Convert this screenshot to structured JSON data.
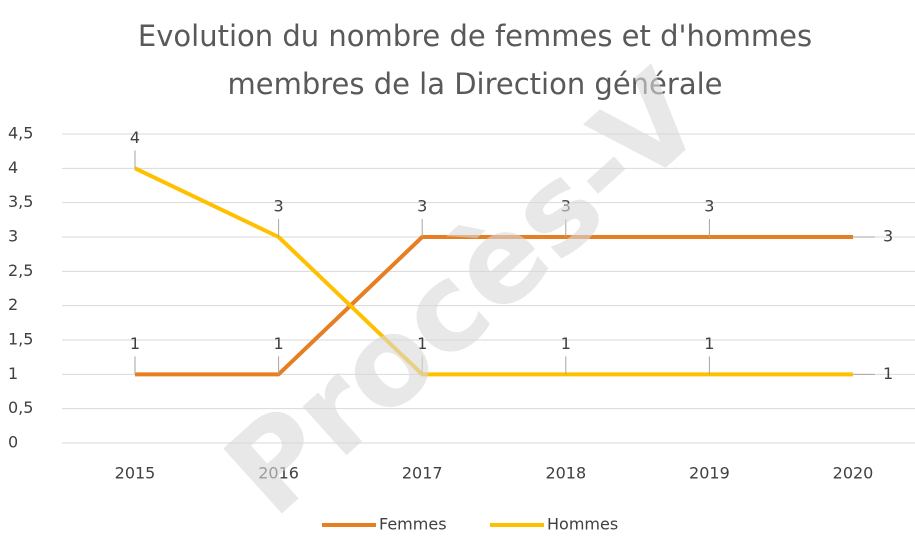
{
  "chart_data": {
    "type": "line",
    "title": [
      "Evolution du nombre de femmes et d'hommes",
      "membres de la Direction générale"
    ],
    "categories": [
      "2015",
      "2016",
      "2017",
      "2018",
      "2019",
      "2020"
    ],
    "series": [
      {
        "name": "Femmes",
        "color": "#e67e22",
        "values": [
          1,
          1,
          3,
          3,
          3,
          3
        ]
      },
      {
        "name": "Hommes",
        "color": "#ffc000",
        "values": [
          4,
          3,
          1,
          1,
          1,
          1
        ]
      }
    ],
    "ylim": [
      0,
      4.5
    ],
    "yticks": [
      0,
      {
        "value": 0.5,
        "label": "0,5"
      },
      1,
      {
        "value": 1.5,
        "label": "1,5"
      },
      2,
      {
        "value": 2.5,
        "label": "2,5"
      },
      3,
      {
        "value": 3.5,
        "label": "3,5"
      },
      4,
      {
        "value": 4.5,
        "label": "4,5"
      }
    ],
    "grid": true,
    "legend": "bottom",
    "watermark": "Procès-V"
  }
}
